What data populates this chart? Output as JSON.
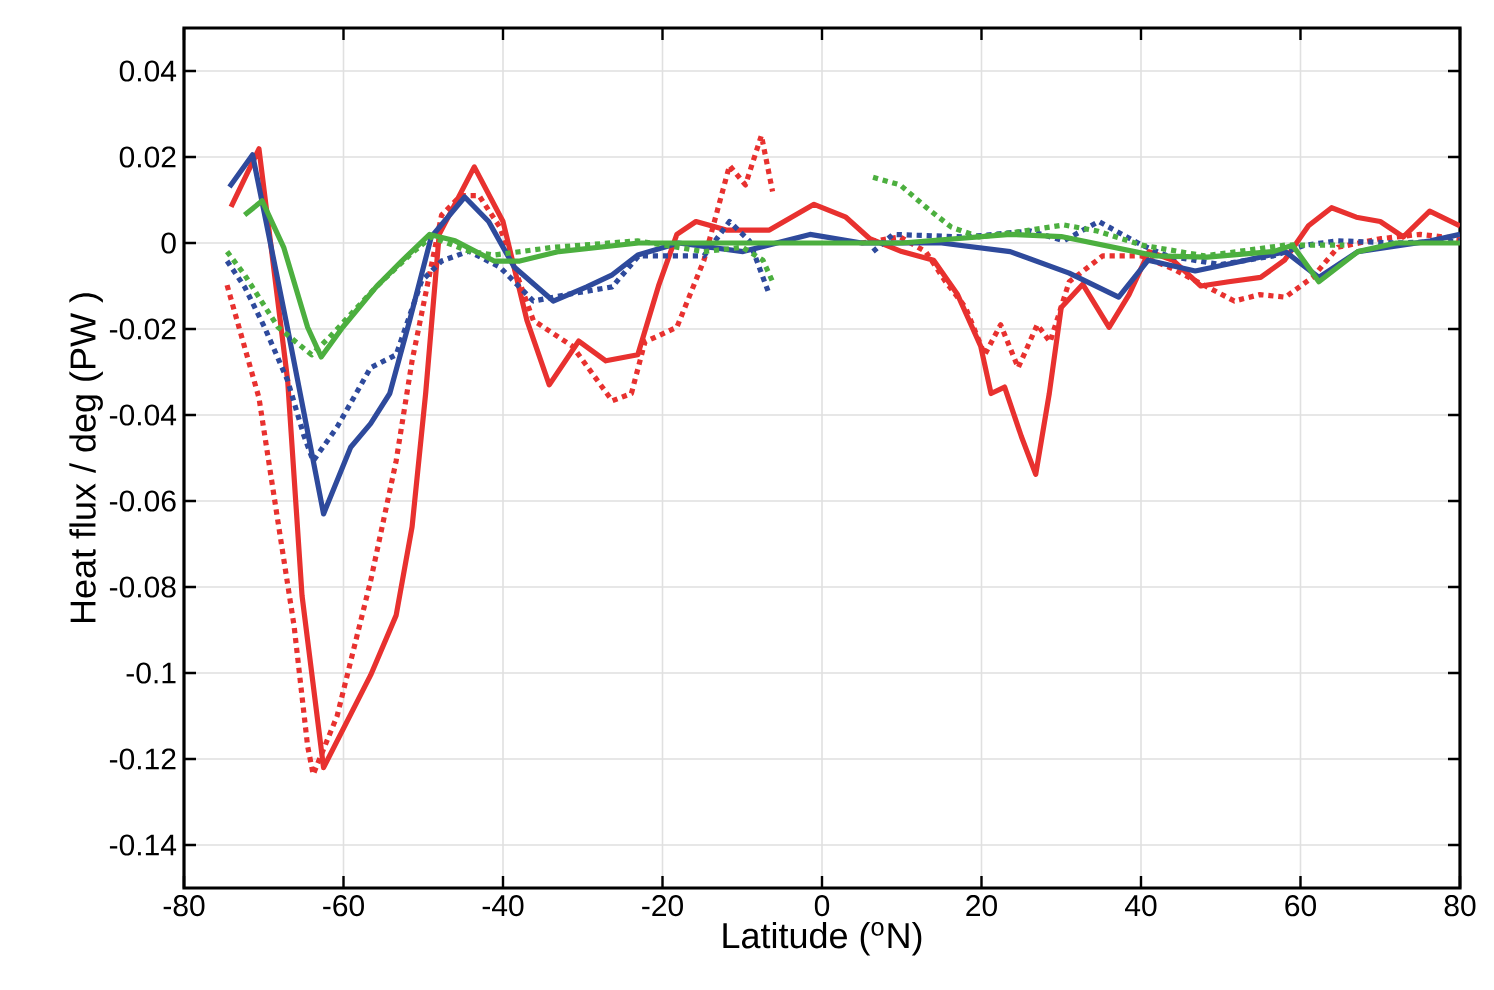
{
  "chart_data": {
    "type": "line",
    "xlabel": "Latitude ($^{o}$N)",
    "ylabel": "Heat flux / deg (PW )",
    "xlim": [
      -80,
      80
    ],
    "ylim": [
      -0.15,
      0.05
    ],
    "xticks": [
      -80,
      -60,
      -40,
      -20,
      0,
      20,
      40,
      60,
      80
    ],
    "yticks": [
      -0.14,
      -0.12,
      -0.1,
      -0.08,
      -0.06,
      -0.04,
      -0.02,
      0,
      0.02,
      0.04
    ],
    "grid": true,
    "marker": "none",
    "series": [
      {
        "color": "#e8312f",
        "line_style": "solid",
        "x": [
          -74.1,
          -70.6,
          -67,
          -65.2,
          -62.5,
          -56.6,
          -53.4,
          -51.4,
          -49.7,
          -48,
          -43.6,
          -40,
          -37,
          -34.2,
          -30.5,
          -27.1,
          -23.1,
          -20.5,
          -18.2,
          -15.8,
          -12,
          -6.6,
          -1,
          3,
          6,
          10,
          14,
          17,
          19.9,
          21.2,
          22.9,
          25,
          26.8,
          28.5,
          30,
          32.7,
          36,
          38.5,
          41,
          44,
          47.5,
          51,
          55,
          58,
          61,
          63.9,
          67,
          70,
          72.9,
          76.2,
          80
        ],
        "values": [
          0.0084,
          0.0219,
          -0.032,
          -0.082,
          -0.122,
          -0.1005,
          -0.0866,
          -0.066,
          -0.035,
          0.002,
          0.0177,
          0.005,
          -0.018,
          -0.033,
          -0.0228,
          -0.0274,
          -0.026,
          -0.01,
          0.002,
          0.005,
          0.003,
          0.003,
          0.009,
          0.006,
          0.001,
          -0.002,
          -0.004,
          -0.012,
          -0.024,
          -0.035,
          -0.0335,
          -0.045,
          -0.0538,
          -0.035,
          -0.015,
          -0.0096,
          -0.0196,
          -0.012,
          -0.002,
          -0.004,
          -0.01,
          -0.009,
          -0.008,
          -0.004,
          0.004,
          0.0082,
          0.006,
          0.005,
          0.0014,
          0.0074,
          0.004
        ]
      },
      {
        "color": "#e8312f",
        "line_style": "dotted",
        "x": [
          -74.6,
          -70.6,
          -68.2,
          -66.2,
          -64.5,
          -63.8,
          -60.8,
          -56.6,
          -53.4,
          -51.4,
          -47.7,
          -45.3,
          -43,
          -40.4,
          -36.2,
          -31.3,
          -26.3,
          -23.9,
          -22.2,
          -18.2,
          -14.8,
          -11.6,
          -9.6,
          -7.6,
          -6.2,
          0,
          4.9,
          9.8,
          13,
          15.5,
          18,
          20.4,
          22.4,
          24.6,
          27,
          28.6,
          31,
          35.2,
          40,
          44,
          48.3,
          51.7,
          54.9,
          58.1,
          61.5,
          64.7,
          70,
          75,
          80
        ],
        "values": [
          -0.0098,
          -0.036,
          -0.065,
          -0.089,
          -0.117,
          -0.1236,
          -0.11,
          -0.0786,
          -0.0507,
          -0.0274,
          0.0065,
          0.011,
          0.011,
          0.0037,
          -0.018,
          -0.024,
          -0.0367,
          -0.035,
          -0.023,
          -0.0196,
          -0.004,
          0.018,
          0.0135,
          0.025,
          0.012,
          null,
          0,
          0.0014,
          -0.002,
          -0.009,
          -0.015,
          -0.026,
          -0.019,
          -0.029,
          -0.019,
          -0.023,
          -0.009,
          -0.003,
          -0.003,
          -0.006,
          -0.0102,
          -0.0135,
          -0.012,
          -0.0126,
          -0.008,
          -0.001,
          0.001,
          0.002,
          0.001
        ]
      },
      {
        "color": "#2e4a9c",
        "line_style": "solid",
        "x": [
          -74.3,
          -71.4,
          -67,
          -62.5,
          -59.1,
          -56.6,
          -54.2,
          -51.7,
          -49,
          -44.8,
          -41.8,
          -38.6,
          -33.7,
          -29.5,
          -26.3,
          -23.1,
          -18,
          -9.9,
          -1.5,
          5,
          15,
          23.6,
          31,
          37.2,
          40.9,
          46.8,
          53.2,
          58.1,
          62.3,
          67.2,
          76.3,
          80
        ],
        "values": [
          0.013,
          0.0205,
          -0.02,
          -0.063,
          -0.0475,
          -0.042,
          -0.035,
          -0.018,
          0.0014,
          0.0107,
          0.005,
          -0.0056,
          -0.0135,
          -0.0102,
          -0.0074,
          -0.0028,
          0,
          -0.002,
          0.002,
          0,
          0,
          -0.002,
          -0.007,
          -0.0126,
          -0.004,
          -0.0065,
          -0.004,
          -0.002,
          -0.008,
          -0.002,
          0.0005,
          0.002
        ]
      },
      {
        "color": "#2e4a9c",
        "line_style": "dotted",
        "x": [
          -74.6,
          -72.4,
          -69.9,
          -67,
          -65,
          -63.8,
          -60.8,
          -56.6,
          -53.4,
          -50.2,
          -47.7,
          -44.3,
          -40.4,
          -36.2,
          -32,
          -26.3,
          -23,
          -14.8,
          -11.6,
          -9.1,
          -6.6,
          0,
          6.4,
          8.9,
          18,
          26.1,
          30.3,
          34.7,
          40.1,
          43.3,
          50,
          56.6,
          60.6,
          64.7,
          72,
          80
        ],
        "values": [
          -0.0042,
          -0.0102,
          -0.0196,
          -0.032,
          -0.0446,
          -0.0507,
          -0.0428,
          -0.029,
          -0.026,
          -0.0088,
          -0.0042,
          -0.0019,
          -0.0056,
          -0.0135,
          -0.012,
          -0.0102,
          -0.003,
          -0.003,
          0.005,
          0.0005,
          -0.012,
          null,
          -0.002,
          0.002,
          0.0014,
          0.0028,
          0.0005,
          0.005,
          -0.0005,
          -0.003,
          -0.005,
          -0.003,
          -0.0005,
          0.0005,
          0,
          0.0005
        ]
      },
      {
        "color": "#4caf3f",
        "line_style": "solid",
        "x": [
          -72.4,
          -70.2,
          -67.5,
          -64.5,
          -62.8,
          -60.1,
          -55.9,
          -52.7,
          -49.2,
          -46,
          -41.1,
          -37.9,
          -33,
          -23,
          -10,
          0,
          10,
          23.6,
          30,
          41.8,
          48.3,
          56.6,
          59,
          62.3,
          67.2,
          72,
          80
        ],
        "values": [
          0.0065,
          0.0098,
          -0.001,
          -0.0196,
          -0.0265,
          -0.0196,
          -0.0102,
          -0.0042,
          0.002,
          0.0005,
          -0.0042,
          -0.0042,
          -0.002,
          0,
          0,
          0,
          0,
          0.002,
          0.0015,
          -0.003,
          -0.0033,
          -0.002,
          -0.0005,
          -0.009,
          -0.002,
          0,
          0
        ]
      },
      {
        "color": "#4caf3f",
        "line_style": "dotted",
        "x": [
          -74.6,
          -72.4,
          -68.2,
          -64,
          -61.5,
          -55.9,
          -51.7,
          -49,
          -44.3,
          -41.1,
          -33.7,
          -23.1,
          -14.8,
          -10,
          -7.4,
          -6.2,
          0,
          6.4,
          9.8,
          13,
          16.2,
          19.7,
          25.4,
          30.3,
          34.5,
          40.1,
          48,
          58.1,
          61.5,
          65.5
        ],
        "values": [
          -0.002,
          -0.0074,
          -0.0196,
          -0.026,
          -0.0214,
          -0.0102,
          -0.0028,
          0.0014,
          -0.0019,
          -0.0028,
          -0.001,
          0.0005,
          -0.002,
          -0.001,
          -0.004,
          -0.009,
          null,
          0.0153,
          0.0135,
          0.0084,
          0.0037,
          0.0014,
          0.0028,
          0.0042,
          0.0028,
          -0.0005,
          -0.003,
          -0.0005,
          -0.0005,
          -0.0005
        ]
      }
    ]
  }
}
